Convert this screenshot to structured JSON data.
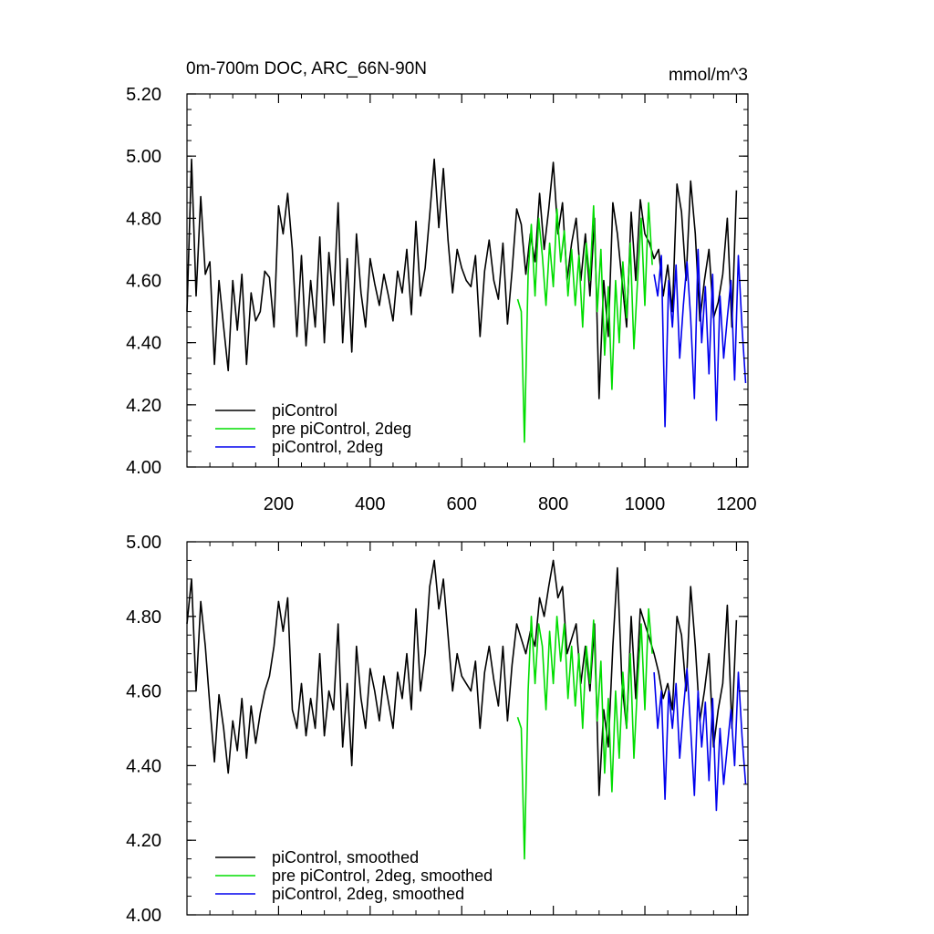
{
  "chart_data": [
    {
      "type": "line",
      "title": "0m-700m DOC, ARC_66N-90N",
      "units": "mmol/m^3",
      "xlim": [
        0,
        1225
      ],
      "ylim": [
        4.0,
        5.2
      ],
      "x_ticks": [
        200,
        400,
        600,
        800,
        1000,
        1200
      ],
      "x_tick_labels": [
        "200",
        "400",
        "600",
        "800",
        "1000",
        "1200"
      ],
      "y_ticks": [
        4.0,
        4.2,
        4.4,
        4.6,
        4.8,
        5.0,
        5.2
      ],
      "y_tick_labels": [
        "4.00",
        "4.20",
        "4.40",
        "4.60",
        "4.80",
        "5.00",
        "5.20"
      ],
      "legend_position": "bottom-left",
      "series": [
        {
          "name": "piControl",
          "color": "#000000",
          "x": [
            0,
            10,
            20,
            30,
            40,
            50,
            60,
            70,
            80,
            90,
            100,
            110,
            120,
            130,
            140,
            150,
            160,
            170,
            180,
            190,
            200,
            210,
            220,
            230,
            240,
            250,
            260,
            270,
            280,
            290,
            300,
            310,
            320,
            330,
            340,
            350,
            360,
            370,
            380,
            390,
            400,
            410,
            420,
            430,
            440,
            450,
            460,
            470,
            480,
            490,
            500,
            510,
            520,
            530,
            540,
            550,
            560,
            570,
            580,
            590,
            600,
            610,
            620,
            630,
            640,
            650,
            660,
            670,
            680,
            690,
            700,
            710,
            720,
            730,
            740,
            750,
            760,
            770,
            780,
            790,
            800,
            810,
            820,
            830,
            840,
            850,
            860,
            870,
            880,
            890,
            900,
            910,
            920,
            930,
            940,
            950,
            960,
            970,
            980,
            990,
            1000,
            1010,
            1020,
            1030,
            1040,
            1050,
            1060,
            1070,
            1080,
            1090,
            1100,
            1110,
            1120,
            1130,
            1140,
            1150,
            1160,
            1170,
            1180,
            1190,
            1200
          ],
          "values": [
            4.5,
            4.99,
            4.55,
            4.87,
            4.62,
            4.66,
            4.33,
            4.6,
            4.45,
            4.31,
            4.6,
            4.44,
            4.62,
            4.33,
            4.56,
            4.47,
            4.5,
            4.63,
            4.61,
            4.45,
            4.84,
            4.75,
            4.88,
            4.7,
            4.42,
            4.68,
            4.39,
            4.6,
            4.45,
            4.74,
            4.4,
            4.69,
            4.52,
            4.85,
            4.4,
            4.67,
            4.37,
            4.75,
            4.56,
            4.45,
            4.67,
            4.59,
            4.52,
            4.62,
            4.55,
            4.47,
            4.63,
            4.56,
            4.7,
            4.49,
            4.79,
            4.55,
            4.64,
            4.81,
            4.99,
            4.77,
            4.96,
            4.73,
            4.56,
            4.7,
            4.64,
            4.6,
            4.58,
            4.68,
            4.42,
            4.63,
            4.73,
            4.6,
            4.54,
            4.72,
            4.46,
            4.63,
            4.83,
            4.78,
            4.62,
            4.75,
            4.66,
            4.88,
            4.7,
            4.83,
            4.98,
            4.75,
            4.85,
            4.6,
            4.72,
            4.8,
            4.6,
            4.75,
            4.55,
            4.8,
            4.22,
            4.6,
            4.42,
            4.85,
            4.75,
            4.6,
            4.45,
            4.82,
            4.6,
            4.86,
            4.75,
            4.72,
            4.67,
            4.7,
            4.55,
            4.65,
            4.5,
            4.91,
            4.82,
            4.6,
            4.92,
            4.75,
            4.47,
            4.6,
            4.7,
            4.48,
            4.53,
            4.62,
            4.8,
            4.45,
            4.89
          ]
        },
        {
          "name": "pre piControl, 2deg",
          "color": "#00dd00",
          "x": [
            722,
            730,
            737,
            745,
            752,
            760,
            768,
            776,
            784,
            792,
            800,
            808,
            816,
            824,
            832,
            840,
            848,
            856,
            864,
            872,
            880,
            888,
            896,
            904,
            912,
            920,
            928,
            936,
            944,
            952,
            960,
            968,
            976,
            984,
            992,
            1000,
            1008,
            1016
          ],
          "values": [
            4.54,
            4.5,
            4.08,
            4.62,
            4.78,
            4.55,
            4.8,
            4.68,
            4.52,
            4.72,
            4.58,
            4.83,
            4.66,
            4.76,
            4.55,
            4.7,
            4.52,
            4.68,
            4.45,
            4.72,
            4.6,
            4.84,
            4.5,
            4.7,
            4.36,
            4.58,
            4.25,
            4.6,
            4.4,
            4.66,
            4.48,
            4.72,
            4.38,
            4.6,
            4.8,
            4.52,
            4.85,
            4.65
          ]
        },
        {
          "name": "piControl, 2deg",
          "color": "#0000ee",
          "x": [
            1020,
            1028,
            1036,
            1044,
            1052,
            1060,
            1068,
            1076,
            1084,
            1092,
            1100,
            1108,
            1116,
            1124,
            1132,
            1140,
            1148,
            1156,
            1164,
            1172,
            1180,
            1188,
            1196,
            1204,
            1212,
            1220
          ],
          "values": [
            4.62,
            4.55,
            4.68,
            4.13,
            4.6,
            4.45,
            4.65,
            4.35,
            4.52,
            4.66,
            4.48,
            4.22,
            4.7,
            4.4,
            4.58,
            4.3,
            4.62,
            4.15,
            4.55,
            4.35,
            4.48,
            4.6,
            4.28,
            4.68,
            4.45,
            4.27
          ]
        }
      ]
    },
    {
      "type": "line",
      "title": "",
      "xlim": [
        0,
        1225
      ],
      "ylim": [
        4.0,
        5.0
      ],
      "y_ticks": [
        4.0,
        4.2,
        4.4,
        4.6,
        4.8,
        5.0
      ],
      "y_tick_labels": [
        "4.00",
        "4.20",
        "4.40",
        "4.60",
        "4.80",
        "5.00"
      ],
      "legend_position": "bottom-left",
      "series": [
        {
          "name": "piControl, smoothed",
          "color": "#000000",
          "x": [
            0,
            10,
            20,
            30,
            40,
            50,
            60,
            70,
            80,
            90,
            100,
            110,
            120,
            130,
            140,
            150,
            160,
            170,
            180,
            190,
            200,
            210,
            220,
            230,
            240,
            250,
            260,
            270,
            280,
            290,
            300,
            310,
            320,
            330,
            340,
            350,
            360,
            370,
            380,
            390,
            400,
            410,
            420,
            430,
            440,
            450,
            460,
            470,
            480,
            490,
            500,
            510,
            520,
            530,
            540,
            550,
            560,
            570,
            580,
            590,
            600,
            610,
            620,
            630,
            640,
            650,
            660,
            670,
            680,
            690,
            700,
            710,
            720,
            730,
            740,
            750,
            760,
            770,
            780,
            790,
            800,
            810,
            820,
            830,
            840,
            850,
            860,
            870,
            880,
            890,
            900,
            910,
            920,
            930,
            940,
            950,
            960,
            970,
            980,
            990,
            1000,
            1010,
            1020,
            1030,
            1040,
            1050,
            1060,
            1070,
            1080,
            1090,
            1100,
            1110,
            1120,
            1130,
            1140,
            1150,
            1160,
            1170,
            1180,
            1190,
            1200
          ],
          "values": [
            4.78,
            4.9,
            4.6,
            4.84,
            4.72,
            4.56,
            4.41,
            4.59,
            4.5,
            4.38,
            4.52,
            4.44,
            4.58,
            4.42,
            4.56,
            4.46,
            4.54,
            4.6,
            4.64,
            4.72,
            4.84,
            4.76,
            4.85,
            4.55,
            4.5,
            4.62,
            4.48,
            4.58,
            4.5,
            4.7,
            4.48,
            4.6,
            4.55,
            4.78,
            4.45,
            4.62,
            4.4,
            4.72,
            4.58,
            4.5,
            4.66,
            4.6,
            4.52,
            4.64,
            4.57,
            4.5,
            4.65,
            4.58,
            4.7,
            4.55,
            4.82,
            4.6,
            4.7,
            4.88,
            4.95,
            4.82,
            4.9,
            4.75,
            4.6,
            4.7,
            4.64,
            4.62,
            4.6,
            4.68,
            4.5,
            4.65,
            4.72,
            4.63,
            4.56,
            4.72,
            4.52,
            4.67,
            4.78,
            4.74,
            4.7,
            4.76,
            4.72,
            4.85,
            4.8,
            4.88,
            4.95,
            4.85,
            4.88,
            4.7,
            4.74,
            4.78,
            4.62,
            4.72,
            4.6,
            4.78,
            4.32,
            4.55,
            4.45,
            4.72,
            4.93,
            4.62,
            4.5,
            4.8,
            4.58,
            4.82,
            4.78,
            4.74,
            4.7,
            4.65,
            4.58,
            4.62,
            4.55,
            4.8,
            4.75,
            4.6,
            4.88,
            4.72,
            4.52,
            4.6,
            4.7,
            4.45,
            4.55,
            4.62,
            4.83,
            4.5,
            4.79
          ]
        },
        {
          "name": "pre piControl, 2deg, smoothed",
          "color": "#00dd00",
          "x": [
            722,
            730,
            737,
            745,
            752,
            760,
            768,
            776,
            784,
            792,
            800,
            808,
            816,
            824,
            832,
            840,
            848,
            856,
            864,
            872,
            880,
            888,
            896,
            904,
            912,
            920,
            928,
            936,
            944,
            952,
            960,
            968,
            976,
            984,
            992,
            1000,
            1008,
            1016
          ],
          "values": [
            4.53,
            4.5,
            4.15,
            4.6,
            4.8,
            4.62,
            4.78,
            4.72,
            4.55,
            4.76,
            4.62,
            4.8,
            4.68,
            4.78,
            4.58,
            4.72,
            4.56,
            4.7,
            4.5,
            4.72,
            4.62,
            4.79,
            4.52,
            4.68,
            4.38,
            4.58,
            4.33,
            4.6,
            4.42,
            4.65,
            4.5,
            4.7,
            4.42,
            4.62,
            4.78,
            4.55,
            4.82,
            4.7
          ]
        },
        {
          "name": "piControl, 2deg, smoothed",
          "color": "#0000ee",
          "x": [
            1020,
            1028,
            1036,
            1044,
            1052,
            1060,
            1068,
            1076,
            1084,
            1092,
            1100,
            1108,
            1116,
            1124,
            1132,
            1140,
            1148,
            1156,
            1164,
            1172,
            1180,
            1188,
            1196,
            1204,
            1212,
            1220
          ],
          "values": [
            4.65,
            4.5,
            4.6,
            4.31,
            4.6,
            4.5,
            4.62,
            4.42,
            4.55,
            4.66,
            4.5,
            4.32,
            4.6,
            4.45,
            4.57,
            4.36,
            4.58,
            4.28,
            4.5,
            4.35,
            4.45,
            4.55,
            4.4,
            4.65,
            4.48,
            4.35
          ]
        }
      ]
    }
  ]
}
